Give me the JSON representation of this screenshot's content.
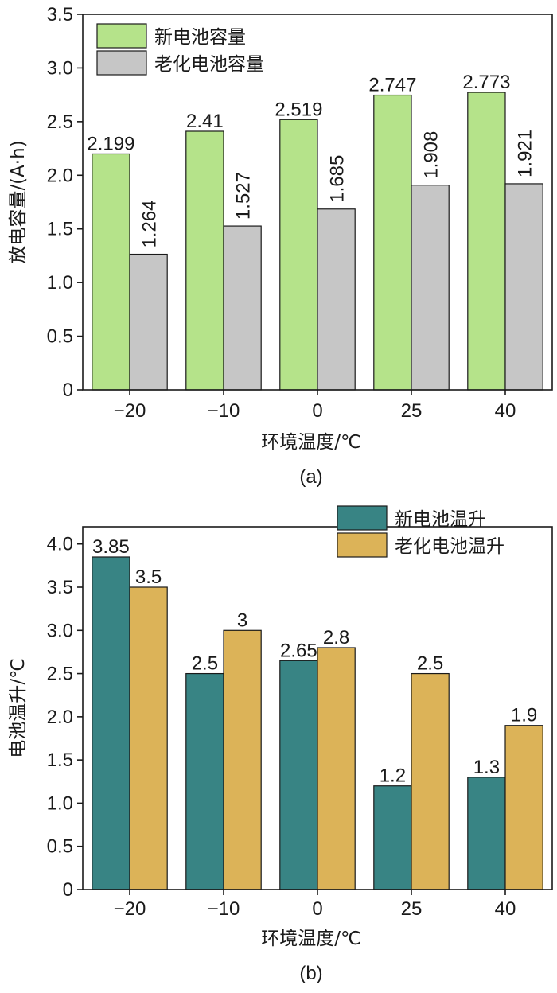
{
  "chart_data": [
    {
      "type": "bar",
      "categories": [
        "−20",
        "−10",
        "0",
        "25",
        "40"
      ],
      "series": [
        {
          "name": "新电池容量",
          "values": [
            2.199,
            2.41,
            2.519,
            2.747,
            2.773
          ],
          "labels": [
            "2.199",
            "2.41",
            "2.519",
            "2.747",
            "2.773"
          ],
          "color": "#b5e38a"
        },
        {
          "name": "老化电池容量",
          "values": [
            1.264,
            1.527,
            1.685,
            1.908,
            1.921
          ],
          "labels": [
            "1.264",
            "1.527",
            "1.685",
            "1.908",
            "1.921"
          ],
          "color": "#c6c6c6"
        }
      ],
      "xlabel": "环境温度/℃",
      "ylabel": "放电容量/(A·h)",
      "ylim": [
        0,
        3.5
      ],
      "yticks": [
        0,
        0.5,
        1.0,
        1.5,
        2.0,
        2.5,
        3.0,
        3.5
      ],
      "ytick_labels": [
        "0",
        "0.5",
        "1.0",
        "1.5",
        "2.0",
        "2.5",
        "3.0",
        "3.5"
      ],
      "panel_label": "(a)",
      "legend_position": "top-left",
      "second_series_label_rotation": "vertical",
      "grid": false
    },
    {
      "type": "bar",
      "categories": [
        "−20",
        "−10",
        "0",
        "25",
        "40"
      ],
      "series": [
        {
          "name": "新电池温升",
          "values": [
            3.85,
            2.5,
            2.65,
            1.2,
            1.3
          ],
          "labels": [
            "3.85",
            "2.5",
            "2.65",
            "1.2",
            "1.3"
          ],
          "color": "#388484"
        },
        {
          "name": "老化电池温升",
          "values": [
            3.5,
            3.0,
            2.8,
            2.5,
            1.9
          ],
          "labels": [
            "3.5",
            "3",
            "2.8",
            "2.5",
            "1.9"
          ],
          "color": "#dcb358"
        }
      ],
      "xlabel": "环境温度/℃",
      "ylabel": "电池温升/℃",
      "ylim": [
        0,
        4.2
      ],
      "yticks": [
        0,
        0.5,
        1.0,
        1.5,
        2.0,
        2.5,
        3.0,
        3.5,
        4.0
      ],
      "ytick_labels": [
        "0",
        "0.5",
        "1.0",
        "1.5",
        "2.0",
        "2.5",
        "3.0",
        "3.5",
        "4.0"
      ],
      "panel_label": "(b)",
      "legend_position": "top-right",
      "second_series_label_rotation": "horizontal",
      "grid": false
    }
  ]
}
